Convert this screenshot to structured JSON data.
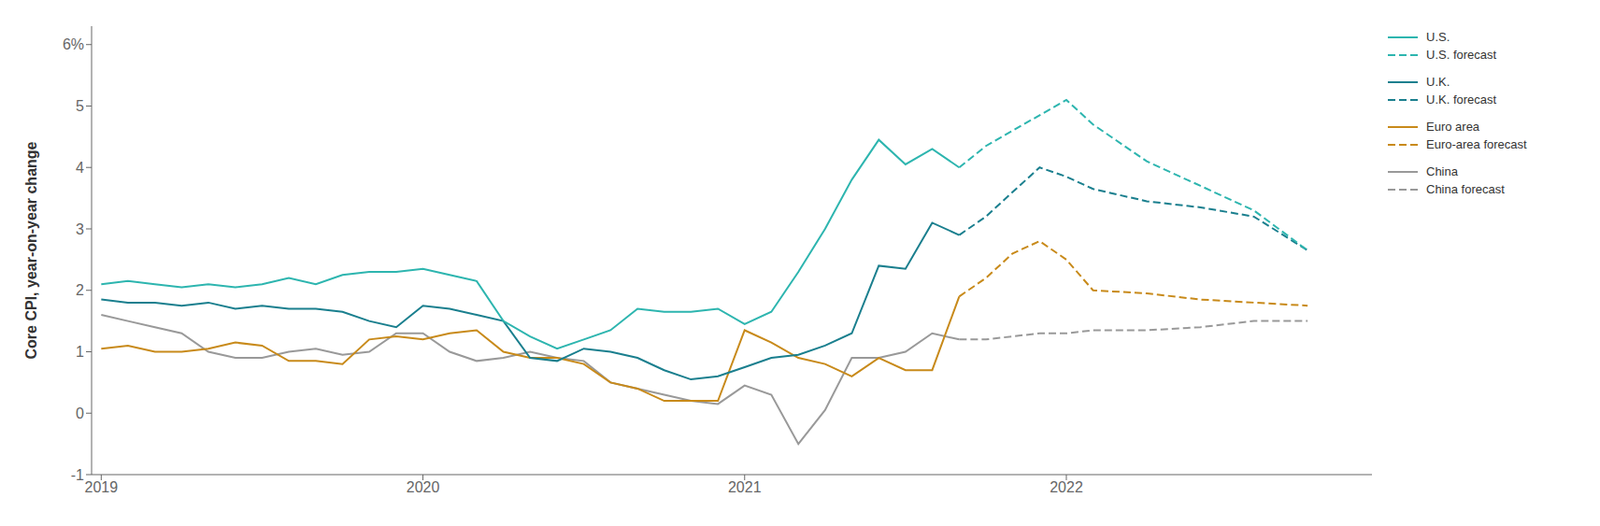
{
  "chart_data": {
    "type": "line",
    "y_label": "Core CPI, year-on-year change",
    "x": [
      2019.0,
      2019.083,
      2019.167,
      2019.25,
      2019.333,
      2019.417,
      2019.5,
      2019.583,
      2019.667,
      2019.75,
      2019.833,
      2019.917,
      2020.0,
      2020.083,
      2020.167,
      2020.25,
      2020.333,
      2020.417,
      2020.5,
      2020.583,
      2020.667,
      2020.75,
      2020.833,
      2020.917,
      2021.0,
      2021.083,
      2021.167,
      2021.25,
      2021.333,
      2021.417,
      2021.5,
      2021.583,
      2021.667,
      2021.75,
      2021.833,
      2021.917,
      2022.0,
      2022.083,
      2022.25,
      2022.417,
      2022.583,
      2022.75
    ],
    "series": [
      {
        "name": "U.S.",
        "color": "#2db5af",
        "line_style": "solid",
        "values": [
          2.1,
          2.15,
          2.1,
          2.05,
          2.1,
          2.05,
          2.1,
          2.2,
          2.1,
          2.25,
          2.3,
          2.3,
          2.35,
          2.25,
          2.15,
          1.5,
          1.25,
          1.05,
          1.2,
          1.35,
          1.7,
          1.65,
          1.65,
          1.7,
          1.45,
          1.65,
          2.3,
          3.0,
          3.8,
          4.45,
          4.05,
          4.3,
          4.0,
          null,
          null,
          null,
          null,
          null,
          null,
          null,
          null,
          null
        ]
      },
      {
        "name": "U.S. forecast",
        "color": "#2db5af",
        "line_style": "dashed",
        "values": [
          null,
          null,
          null,
          null,
          null,
          null,
          null,
          null,
          null,
          null,
          null,
          null,
          null,
          null,
          null,
          null,
          null,
          null,
          null,
          null,
          null,
          null,
          null,
          null,
          null,
          null,
          null,
          null,
          null,
          null,
          null,
          null,
          4.0,
          4.35,
          4.6,
          4.85,
          5.1,
          4.7,
          4.1,
          3.7,
          3.3,
          2.65
        ]
      },
      {
        "name": "U.K.",
        "color": "#1a7f8e",
        "line_style": "solid",
        "values": [
          1.85,
          1.8,
          1.8,
          1.75,
          1.8,
          1.7,
          1.75,
          1.7,
          1.7,
          1.65,
          1.5,
          1.4,
          1.75,
          1.7,
          1.6,
          1.5,
          0.9,
          0.85,
          1.05,
          1.0,
          0.9,
          0.7,
          0.55,
          0.6,
          0.75,
          0.9,
          0.95,
          1.1,
          1.3,
          2.4,
          2.35,
          3.1,
          2.9,
          null,
          null,
          null,
          null,
          null,
          null,
          null,
          null,
          null
        ]
      },
      {
        "name": "U.K. forecast",
        "color": "#1a7f8e",
        "line_style": "dashed",
        "values": [
          null,
          null,
          null,
          null,
          null,
          null,
          null,
          null,
          null,
          null,
          null,
          null,
          null,
          null,
          null,
          null,
          null,
          null,
          null,
          null,
          null,
          null,
          null,
          null,
          null,
          null,
          null,
          null,
          null,
          null,
          null,
          null,
          2.9,
          3.2,
          3.6,
          4.0,
          3.85,
          3.65,
          3.45,
          3.35,
          3.2,
          2.65
        ]
      },
      {
        "name": "Euro area",
        "color": "#c88a1a",
        "line_style": "solid",
        "values": [
          1.05,
          1.1,
          1.0,
          1.0,
          1.05,
          1.15,
          1.1,
          0.85,
          0.85,
          0.8,
          1.2,
          1.25,
          1.2,
          1.3,
          1.35,
          1.0,
          0.9,
          0.9,
          0.8,
          0.5,
          0.4,
          0.2,
          0.2,
          0.2,
          1.35,
          1.15,
          0.9,
          0.8,
          0.6,
          0.9,
          0.7,
          0.7,
          1.9,
          null,
          null,
          null,
          null,
          null,
          null,
          null,
          null,
          null
        ]
      },
      {
        "name": "Euro-area forecast",
        "color": "#c88a1a",
        "line_style": "dashed",
        "values": [
          null,
          null,
          null,
          null,
          null,
          null,
          null,
          null,
          null,
          null,
          null,
          null,
          null,
          null,
          null,
          null,
          null,
          null,
          null,
          null,
          null,
          null,
          null,
          null,
          null,
          null,
          null,
          null,
          null,
          null,
          null,
          null,
          1.9,
          2.2,
          2.6,
          2.8,
          2.5,
          2.0,
          1.95,
          1.85,
          1.8,
          1.75
        ]
      },
      {
        "name": "China",
        "color": "#999999",
        "line_style": "solid",
        "values": [
          1.6,
          1.5,
          1.4,
          1.3,
          1.0,
          0.9,
          0.9,
          1.0,
          1.05,
          0.95,
          1.0,
          1.3,
          1.3,
          1.0,
          0.85,
          0.9,
          1.0,
          0.9,
          0.85,
          0.5,
          0.4,
          0.3,
          0.2,
          0.15,
          0.45,
          0.3,
          -0.5,
          0.05,
          0.9,
          0.9,
          1.0,
          1.3,
          1.2,
          null,
          null,
          null,
          null,
          null,
          null,
          null,
          null,
          null
        ]
      },
      {
        "name": "China forecast",
        "color": "#999999",
        "line_style": "dashed",
        "values": [
          null,
          null,
          null,
          null,
          null,
          null,
          null,
          null,
          null,
          null,
          null,
          null,
          null,
          null,
          null,
          null,
          null,
          null,
          null,
          null,
          null,
          null,
          null,
          null,
          null,
          null,
          null,
          null,
          null,
          null,
          null,
          null,
          1.2,
          1.2,
          1.25,
          1.3,
          1.3,
          1.35,
          1.35,
          1.4,
          1.5,
          1.5
        ]
      }
    ],
    "xlim": [
      2018.97,
      2022.95
    ],
    "xticks": [
      2019,
      2020,
      2021,
      2022
    ],
    "ylim": [
      -1,
      6.3
    ],
    "yticks": [
      -1,
      0,
      1,
      2,
      3,
      4,
      5,
      {
        "value": 6,
        "label": "6%"
      }
    ],
    "grid": false
  }
}
